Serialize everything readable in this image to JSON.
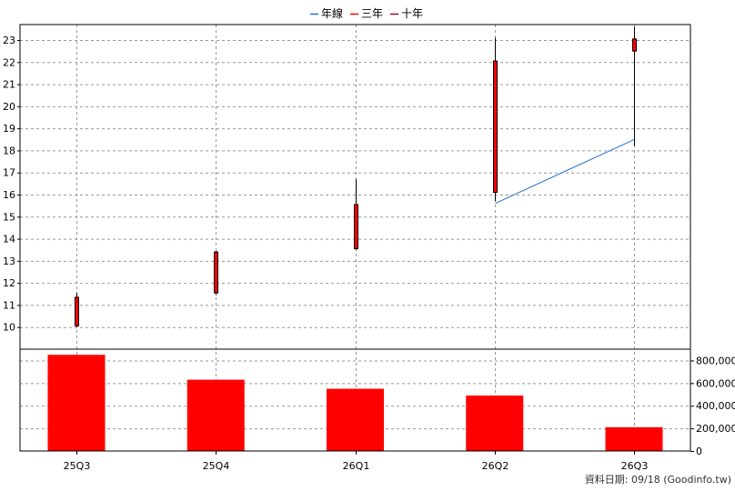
{
  "chart_data": {
    "type": "candlestick",
    "title": "",
    "categories": [
      "25Q3",
      "25Q4",
      "26Q1",
      "26Q2",
      "26Q3"
    ],
    "legend": {
      "placement": "top-center",
      "entries": [
        {
          "name": "年線",
          "color": "#1f6fd0"
        },
        {
          "name": "三年",
          "color": "#ff0000"
        },
        {
          "name": "十年",
          "color": "#9b1030"
        }
      ]
    },
    "price_axis": {
      "ylim": [
        9.0,
        23.7
      ],
      "ticks": [
        10,
        11,
        12,
        13,
        14,
        15,
        16,
        17,
        18,
        19,
        20,
        21,
        22,
        23
      ],
      "position": "left"
    },
    "volume_axis": {
      "ylim": [
        0,
        900000
      ],
      "ticks": [
        0,
        200000,
        400000,
        600000,
        800000
      ],
      "tick_labels": [
        "0",
        "200,000",
        "400,000",
        "600,000",
        "800,000"
      ],
      "position": "right"
    },
    "candles": [
      {
        "open": 10.05,
        "high": 11.55,
        "low": 10.0,
        "close": 11.35
      },
      {
        "open": 11.55,
        "high": 13.45,
        "low": 11.45,
        "close": 13.4
      },
      {
        "open": 13.55,
        "high": 16.7,
        "low": 13.5,
        "close": 15.55
      },
      {
        "open": 16.1,
        "high": 23.1,
        "low": 15.7,
        "close": 22.05
      },
      {
        "open": 22.5,
        "high": 23.6,
        "low": 18.2,
        "close": 23.05
      }
    ],
    "year_line": [
      {
        "category": "26Q2",
        "value": 15.6
      },
      {
        "category": "26Q3",
        "value": 18.5
      }
    ],
    "volume": [
      850000,
      630000,
      550000,
      490000,
      210000
    ],
    "colors": {
      "candle_up": "#ff0000",
      "candle_border": "#000000",
      "wick": "#000000",
      "volume_bar": "#ff0000",
      "year_line": "#1f6fd0",
      "grid": "#999999"
    },
    "grid": true
  },
  "footer": {
    "text": "資料日期: 09/18  (Goodinfo.tw)"
  }
}
